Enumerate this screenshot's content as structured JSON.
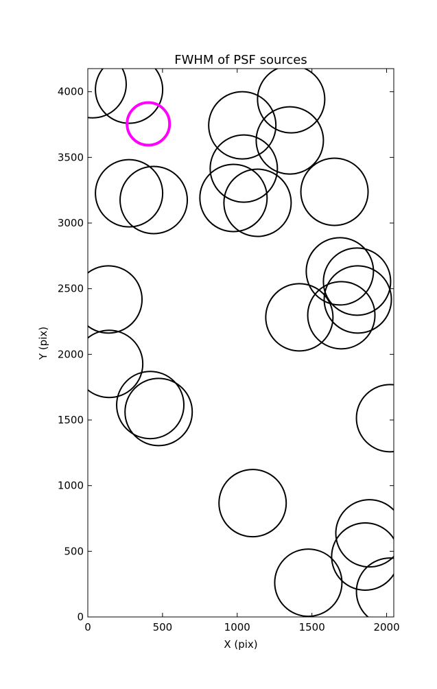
{
  "chart_data": {
    "type": "scatter",
    "title": "FWHM of PSF sources",
    "x_label": "X (pix)",
    "y_label": "Y (pix)",
    "xlim": [
      0,
      2048
    ],
    "ylim": [
      0,
      4176
    ],
    "xticks": [
      0,
      500,
      1000,
      1500,
      2000
    ],
    "yticks": [
      0,
      500,
      1000,
      1500,
      2000,
      2500,
      3000,
      3500,
      4000
    ],
    "series": [
      {
        "color": "#000000",
        "x": [
          32,
          276,
          1361,
          1034,
          1352,
          1044,
          276,
          441,
          975,
          1136,
          1651,
          1687,
          1802,
          1807,
          138,
          1697,
          1416,
          143,
          418,
          474,
          2023,
          1103,
          1885,
          1857,
          1476,
          2023
        ],
        "values": [
          4057,
          4016,
          3943,
          3744,
          3629,
          3415,
          3227,
          3175,
          3191,
          3154,
          3238,
          2632,
          2554,
          2418,
          2418,
          2298,
          2282,
          1927,
          1614,
          1561,
          1514,
          867,
          637,
          460,
          261,
          193
        ]
      },
      {
        "color": "#ff00ff",
        "x": [
          405
        ],
        "values": [
          3755
        ]
      }
    ]
  }
}
